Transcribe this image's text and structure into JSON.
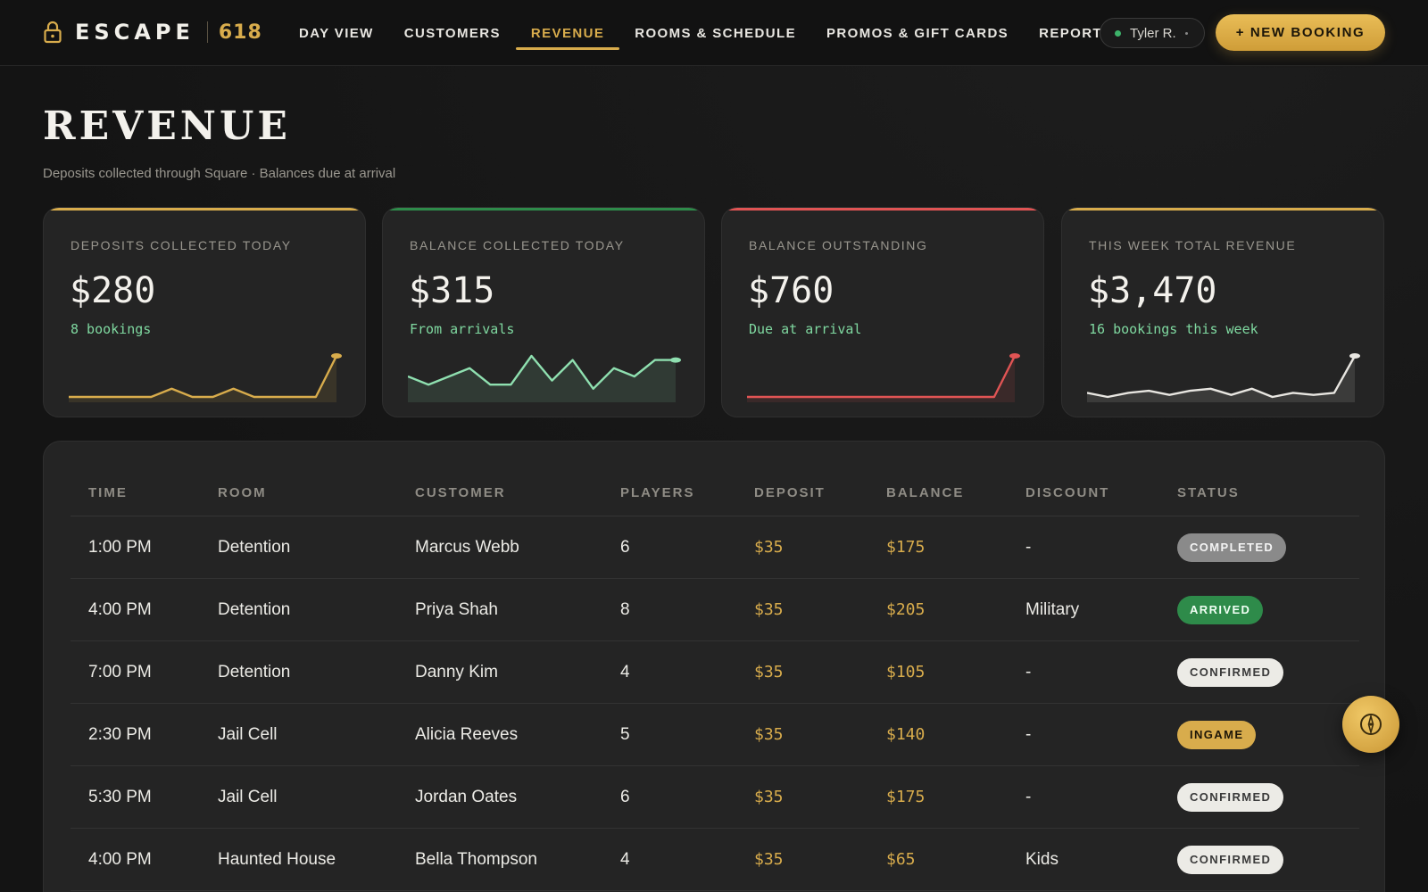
{
  "brand": {
    "name": "ESCAPE",
    "number": "618"
  },
  "nav": [
    {
      "label": "DAY VIEW",
      "active": false
    },
    {
      "label": "CUSTOMERS",
      "active": false
    },
    {
      "label": "REVENUE",
      "active": true
    },
    {
      "label": "ROOMS & SCHEDULE",
      "active": false
    },
    {
      "label": "PROMOS & GIFT CARDS",
      "active": false
    },
    {
      "label": "REPORTING",
      "active": false
    }
  ],
  "user": {
    "name": "Tyler R."
  },
  "actions": {
    "new_booking": "+ NEW BOOKING"
  },
  "page": {
    "title": "REVENUE",
    "subtitle": "Deposits collected through Square · Balances due at arrival"
  },
  "cards": [
    {
      "label": "DEPOSITS COLLECTED TODAY",
      "value": "$280",
      "sub": "8 bookings",
      "accent": "#d8ac4c",
      "spark": [
        0,
        0,
        0,
        0,
        0,
        0.2,
        0,
        0,
        0.2,
        0,
        0,
        0,
        0,
        1
      ]
    },
    {
      "label": "BALANCE COLLECTED TODAY",
      "value": "$315",
      "sub": "From arrivals",
      "accent": "#2e8b4a",
      "spark": [
        0.5,
        0.3,
        0.5,
        0.7,
        0.3,
        0.3,
        1,
        0.4,
        0.9,
        0.2,
        0.7,
        0.5,
        0.9,
        0.9
      ]
    },
    {
      "label": "BALANCE OUTSTANDING",
      "value": "$760",
      "sub": "Due at arrival",
      "accent": "#e05454",
      "spark": [
        0,
        0,
        0,
        0,
        0,
        0,
        0,
        0,
        0,
        0,
        0,
        0,
        0,
        1
      ]
    },
    {
      "label": "THIS WEEK TOTAL REVENUE",
      "value": "$3,470",
      "sub": "16 bookings this week",
      "accent": "#d8ac4c",
      "spark": [
        0.1,
        0,
        0.1,
        0.15,
        0.05,
        0.15,
        0.2,
        0.05,
        0.2,
        0,
        0.1,
        0.05,
        0.1,
        1
      ]
    }
  ],
  "table": {
    "headers": [
      "TIME",
      "ROOM",
      "CUSTOMER",
      "PLAYERS",
      "DEPOSIT",
      "BALANCE",
      "DISCOUNT",
      "STATUS"
    ],
    "rows": [
      {
        "time": "1:00 PM",
        "room": "Detention",
        "customer": "Marcus Webb",
        "players": "6",
        "deposit": "$35",
        "balance": "$175",
        "discount": "-",
        "status": "COMPLETED",
        "status_kind": "completed"
      },
      {
        "time": "4:00 PM",
        "room": "Detention",
        "customer": "Priya Shah",
        "players": "8",
        "deposit": "$35",
        "balance": "$205",
        "discount": "Military",
        "status": "ARRIVED",
        "status_kind": "arrived"
      },
      {
        "time": "7:00 PM",
        "room": "Detention",
        "customer": "Danny Kim",
        "players": "4",
        "deposit": "$35",
        "balance": "$105",
        "discount": "-",
        "status": "CONFIRMED",
        "status_kind": "confirmed"
      },
      {
        "time": "2:30 PM",
        "room": "Jail Cell",
        "customer": "Alicia Reeves",
        "players": "5",
        "deposit": "$35",
        "balance": "$140",
        "discount": "-",
        "status": "INGAME",
        "status_kind": "ingame"
      },
      {
        "time": "5:30 PM",
        "room": "Jail Cell",
        "customer": "Jordan Oates",
        "players": "6",
        "deposit": "$35",
        "balance": "$175",
        "discount": "-",
        "status": "CONFIRMED",
        "status_kind": "confirmed"
      },
      {
        "time": "4:00 PM",
        "room": "Haunted House",
        "customer": "Bella Thompson",
        "players": "4",
        "deposit": "$35",
        "balance": "$65",
        "discount": "Kids",
        "status": "CONFIRMED",
        "status_kind": "confirmed"
      }
    ]
  },
  "fab": {
    "icon": "compass-icon"
  }
}
